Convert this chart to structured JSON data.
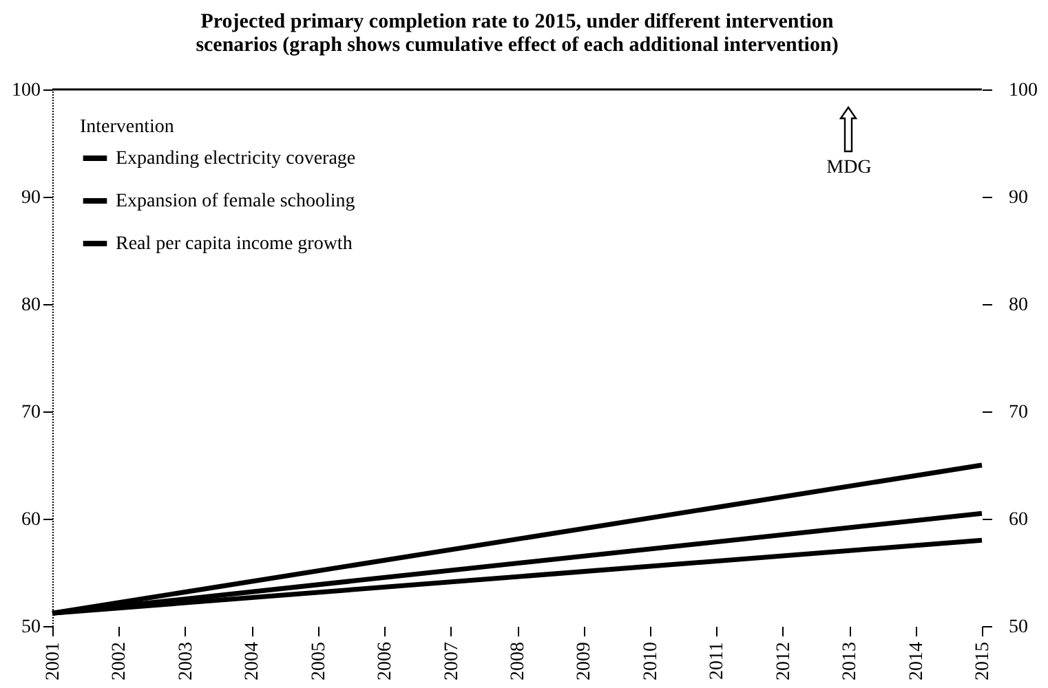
{
  "chart_data": {
    "type": "line",
    "title": "Projected primary completion rate to 2015, under different intervention\nscenarios (graph shows cumulative effect of each additional intervention)",
    "legend_title": "Intervention",
    "x": [
      2001,
      2015
    ],
    "series": [
      {
        "name": "Expanding electricity coverage",
        "color": "#000000",
        "values": [
          51.2,
          65
        ]
      },
      {
        "name": "Expansion of female schooling",
        "color": "#000000",
        "values": [
          51.2,
          60.5
        ]
      },
      {
        "name": "Real per capita income growth",
        "color": "#000000",
        "values": [
          51.2,
          58
        ]
      }
    ],
    "xlim": [
      2001,
      2015
    ],
    "xticks": [
      2001,
      2002,
      2003,
      2004,
      2005,
      2006,
      2007,
      2008,
      2009,
      2010,
      2011,
      2012,
      2013,
      2014,
      2015
    ],
    "ylim": [
      50,
      100
    ],
    "yticks": [
      50,
      60,
      70,
      80,
      90,
      100
    ],
    "y2lim": [
      50,
      100
    ],
    "y2ticks": [
      50,
      60,
      70,
      80,
      90,
      100
    ],
    "ref_lines": [
      {
        "axis": "y",
        "value": 100
      }
    ],
    "annotations": [
      "MDG"
    ],
    "legend": "top left",
    "grid": false,
    "marker": "none",
    "line_style": "solid"
  }
}
